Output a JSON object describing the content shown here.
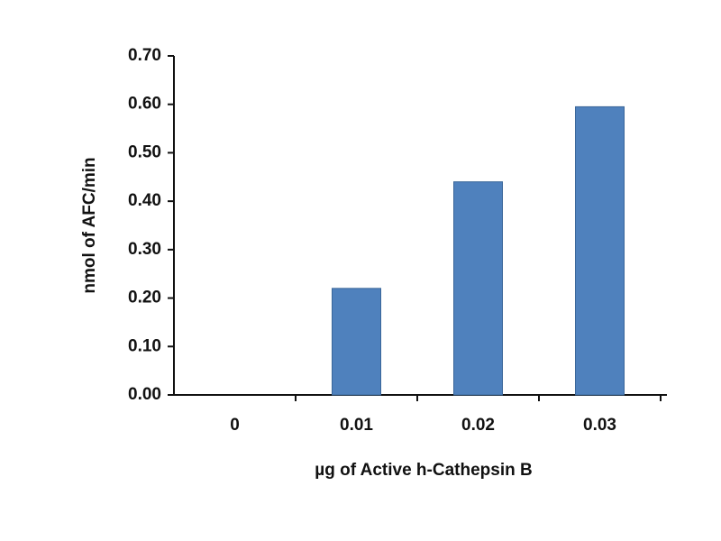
{
  "chart_data": {
    "type": "bar",
    "x_label": "µg of Active h-Cathepsin B",
    "y_label": "nmol of AFC/min",
    "categories": [
      "0",
      "0.01",
      "0.02",
      "0.03"
    ],
    "values": [
      0,
      0.22,
      0.44,
      0.595
    ],
    "color": "#4f81bd",
    "ylim": [
      0,
      0.7
    ],
    "yticks": [
      {
        "value": 0,
        "label": "0.00"
      },
      {
        "value": 0.1,
        "label": "0.10"
      },
      {
        "value": 0.2,
        "label": "0.20"
      },
      {
        "value": 0.3,
        "label": "0.30"
      },
      {
        "value": 0.4,
        "label": "0.40"
      },
      {
        "value": 0.5,
        "label": "0.50"
      },
      {
        "value": 0.6,
        "label": "0.60"
      },
      {
        "value": 0.7,
        "label": "0.70"
      }
    ],
    "grid": false
  }
}
